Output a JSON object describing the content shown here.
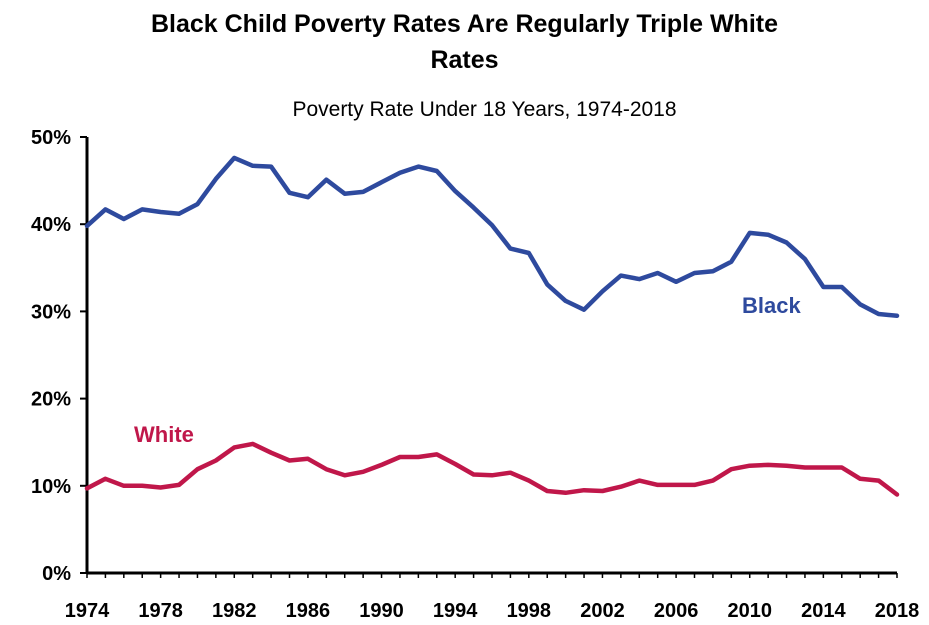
{
  "chart_data": {
    "type": "line",
    "title_line1": "Black Child Poverty Rates Are Regularly Triple White",
    "title_line2": "Rates",
    "subtitle": "Poverty Rate Under 18 Years, 1974-2018",
    "xlabel": "",
    "ylabel": "",
    "xlim": [
      1974,
      2018
    ],
    "ylim": [
      0,
      50
    ],
    "yticks": [
      "0%",
      "10%",
      "20%",
      "30%",
      "40%",
      "50%"
    ],
    "xticks": [
      "1974",
      "1978",
      "1982",
      "1986",
      "1990",
      "1994",
      "1998",
      "2002",
      "2006",
      "2010",
      "2014",
      "2018"
    ],
    "grid": false,
    "x": [
      1974,
      1975,
      1976,
      1977,
      1978,
      1979,
      1980,
      1981,
      1982,
      1983,
      1984,
      1985,
      1986,
      1987,
      1988,
      1989,
      1990,
      1991,
      1992,
      1993,
      1994,
      1995,
      1996,
      1997,
      1998,
      1999,
      2000,
      2001,
      2002,
      2003,
      2004,
      2005,
      2006,
      2007,
      2008,
      2009,
      2010,
      2011,
      2012,
      2013,
      2014,
      2015,
      2016,
      2017,
      2018
    ],
    "series": [
      {
        "name": "Black",
        "color": "#2e4a9e",
        "values": [
          39.8,
          41.7,
          40.6,
          41.7,
          41.4,
          41.2,
          42.3,
          45.2,
          47.6,
          46.7,
          46.6,
          43.6,
          43.1,
          45.1,
          43.5,
          43.7,
          44.8,
          45.9,
          46.6,
          46.1,
          43.8,
          41.9,
          39.9,
          37.2,
          36.7,
          33.1,
          31.2,
          30.2,
          32.3,
          34.1,
          33.7,
          34.4,
          33.4,
          34.4,
          34.6,
          35.7,
          39.0,
          38.8,
          37.9,
          36.0,
          32.8,
          32.8,
          30.8,
          29.7,
          29.5
        ]
      },
      {
        "name": "White",
        "color": "#c0174a",
        "values": [
          9.7,
          10.8,
          10.0,
          10.0,
          9.8,
          10.1,
          11.9,
          12.9,
          14.4,
          14.8,
          13.8,
          12.9,
          13.1,
          11.9,
          11.2,
          11.6,
          12.4,
          13.3,
          13.3,
          13.6,
          12.5,
          11.3,
          11.2,
          11.5,
          10.6,
          9.4,
          9.2,
          9.5,
          9.4,
          9.9,
          10.6,
          10.1,
          10.1,
          10.1,
          10.6,
          11.9,
          12.3,
          12.4,
          12.3,
          12.1,
          12.1,
          12.1,
          10.8,
          10.6,
          9.0
        ]
      }
    ],
    "series_labels": [
      {
        "text": "Black",
        "color": "#2e4a9e"
      },
      {
        "text": "White",
        "color": "#c0174a"
      }
    ]
  }
}
